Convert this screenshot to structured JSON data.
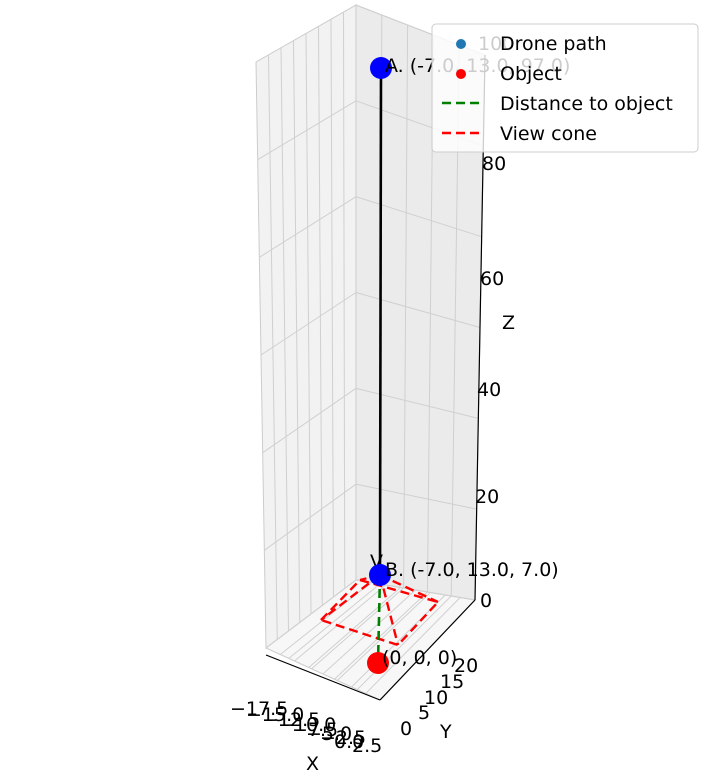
{
  "chart_data": {
    "type": "line3d",
    "xlabel": "X",
    "ylabel": "Y",
    "zlabel": "Z",
    "x_ticks": [
      "−17.5",
      "−15.0",
      "−12.5",
      "−10.0",
      "−7.5",
      "−5.0",
      "−2.5",
      "0.0",
      "2.5"
    ],
    "y_ticks": [
      "0",
      "5",
      "10",
      "15",
      "20"
    ],
    "z_ticks": [
      "0",
      "20",
      "40",
      "60",
      "80",
      "100"
    ],
    "grid": true,
    "legend_position": "upper-right",
    "legend": [
      {
        "label": "Drone path",
        "marker": "dot",
        "color": "#1f77b4"
      },
      {
        "label": "Object",
        "marker": "dot",
        "color": "#ff0000"
      },
      {
        "label": "Distance to object",
        "marker": "dashed-line",
        "color": "#008000"
      },
      {
        "label": "View cone",
        "marker": "dashed-line",
        "color": "#ff0000"
      }
    ],
    "points": [
      {
        "name": "A",
        "label": "A. (-7.0, 13.0, 97.0)",
        "x": -7.0,
        "y": 13.0,
        "z": 97.0,
        "color": "#0000ff"
      },
      {
        "name": "B",
        "label": "B. (-7.0, 13.0, 7.0)",
        "x": -7.0,
        "y": 13.0,
        "z": 7.0,
        "color": "#0000ff"
      },
      {
        "name": "Object",
        "label": "(0, 0, 0)",
        "x": 0,
        "y": 0,
        "z": 0,
        "color": "#ff0000"
      }
    ],
    "drone_path": {
      "from": "A",
      "to": "B",
      "color": "#000000"
    },
    "distance_line": {
      "from": "B",
      "to": "Object",
      "color": "#008000",
      "style": "dashed"
    },
    "view_cone": {
      "color": "#ff0000",
      "style": "dashed",
      "base_corners": 4
    },
    "arrow_label": "V"
  }
}
